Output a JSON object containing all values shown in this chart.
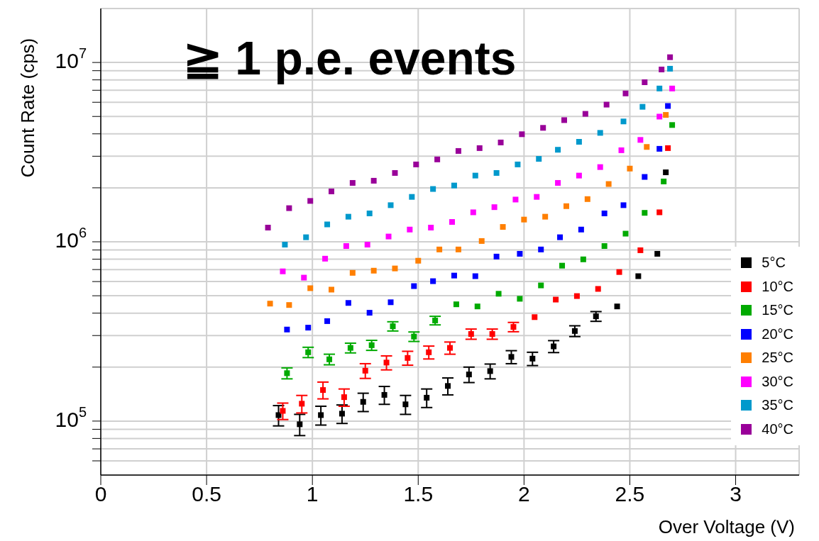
{
  "chart_data": {
    "type": "scatter",
    "title": "≧ 1 p.e. events",
    "xlabel": "Over Voltage (V)",
    "ylabel": "Count Rate (cps)",
    "log": "y",
    "grid": true,
    "marker": "square",
    "legend": "bottom right",
    "xlim": [
      0,
      3.3
    ],
    "xticks": [
      0,
      0.5,
      1,
      1.5,
      2,
      2.5,
      3
    ],
    "ylim": [
      50000,
      20000000
    ],
    "yticks": [
      {
        "value": 60000,
        "label": null
      },
      {
        "value": 70000,
        "label": null
      },
      {
        "value": 80000,
        "label": null
      },
      {
        "value": 90000,
        "label": null
      },
      {
        "value": 100000,
        "label": "10$^{5}$"
      },
      {
        "value": 200000,
        "label": null
      },
      {
        "value": 300000,
        "label": null
      },
      {
        "value": 400000,
        "label": null
      },
      {
        "value": 500000,
        "label": null
      },
      {
        "value": 600000,
        "label": null
      },
      {
        "value": 700000,
        "label": null
      },
      {
        "value": 800000,
        "label": null
      },
      {
        "value": 900000,
        "label": null
      },
      {
        "value": 1000000,
        "label": "10$^{6}$"
      },
      {
        "value": 2000000,
        "label": null
      },
      {
        "value": 3000000,
        "label": null
      },
      {
        "value": 4000000,
        "label": null
      },
      {
        "value": 5000000,
        "label": null
      },
      {
        "value": 6000000,
        "label": null
      },
      {
        "value": 7000000,
        "label": null
      },
      {
        "value": 8000000,
        "label": null
      },
      {
        "value": 9000000,
        "label": null
      },
      {
        "value": 10000000,
        "label": "10$^{7}$"
      }
    ],
    "series": [
      {
        "name": "5°C",
        "color": "#000000",
        "x": [
          0.84,
          0.94,
          1.04,
          1.14,
          1.24,
          1.34,
          1.44,
          1.54,
          1.64,
          1.74,
          1.84,
          1.94,
          2.04,
          2.14,
          2.24,
          2.34,
          2.44,
          2.54,
          2.63,
          2.67
        ],
        "values": [
          108000,
          96000,
          108000,
          110000,
          128000,
          140000,
          124000,
          135000,
          157000,
          182000,
          190000,
          228000,
          223000,
          261000,
          318000,
          384000,
          436000,
          643000,
          857000,
          2440000
        ],
        "errors": [
          14000,
          13000,
          13000,
          13000,
          15000,
          16000,
          15000,
          16000,
          17000,
          18000,
          18000,
          19000,
          19000,
          20000,
          22000,
          24000,
          null,
          null,
          null,
          null
        ]
      },
      {
        "name": "10°C",
        "color": "#ff0000",
        "x": [
          0.86,
          0.95,
          1.05,
          1.15,
          1.25,
          1.35,
          1.45,
          1.55,
          1.65,
          1.75,
          1.85,
          1.95,
          2.05,
          2.15,
          2.25,
          2.35,
          2.45,
          2.55,
          2.64,
          2.68
        ],
        "values": [
          114000,
          125000,
          149000,
          136000,
          191000,
          212000,
          225000,
          242000,
          256000,
          306000,
          306000,
          335000,
          380000,
          476000,
          498000,
          546000,
          678000,
          897000,
          1460000,
          3330000
        ],
        "errors": [
          12000,
          14000,
          16000,
          15000,
          18000,
          19000,
          20000,
          20000,
          20000,
          20000,
          20000,
          20000,
          null,
          null,
          null,
          null,
          null,
          null,
          null,
          null
        ]
      },
      {
        "name": "15°C",
        "color": "#00aa00",
        "x": [
          0.88,
          0.98,
          1.08,
          1.18,
          1.28,
          1.38,
          1.48,
          1.58,
          1.68,
          1.78,
          1.88,
          1.98,
          2.08,
          2.18,
          2.28,
          2.38,
          2.48,
          2.57,
          2.66,
          2.7
        ],
        "values": [
          185000,
          242000,
          221000,
          256000,
          265000,
          338000,
          296000,
          364000,
          448000,
          436000,
          513000,
          481000,
          571000,
          736000,
          798000,
          947000,
          1110000,
          1450000,
          2170000,
          4480000
        ],
        "errors": [
          13000,
          16000,
          15000,
          16000,
          17000,
          20000,
          18000,
          20000,
          null,
          null,
          null,
          null,
          null,
          null,
          null,
          null,
          null,
          null,
          null,
          null
        ]
      },
      {
        "name": "20°C",
        "color": "#0000ff",
        "x": [
          0.88,
          0.98,
          1.07,
          1.17,
          1.27,
          1.37,
          1.48,
          1.57,
          1.67,
          1.77,
          1.87,
          1.98,
          2.08,
          2.17,
          2.27,
          2.38,
          2.47,
          2.57,
          2.64,
          2.68
        ],
        "values": [
          324000,
          332000,
          361000,
          456000,
          402000,
          460000,
          566000,
          603000,
          648000,
          643000,
          827000,
          857000,
          906000,
          1060000,
          1170000,
          1440000,
          1600000,
          2300000,
          3300000,
          5720000
        ]
      },
      {
        "name": "25°C",
        "color": "#ff7f00",
        "x": [
          0.8,
          0.89,
          0.99,
          1.09,
          1.19,
          1.29,
          1.39,
          1.5,
          1.6,
          1.69,
          1.8,
          1.9,
          2,
          2.1,
          2.2,
          2.3,
          2.4,
          2.5,
          2.58,
          2.67
        ],
        "values": [
          452000,
          444000,
          551000,
          541000,
          671000,
          690000,
          710000,
          784000,
          906000,
          906000,
          1010000,
          1210000,
          1330000,
          1380000,
          1580000,
          1730000,
          2100000,
          2560000,
          3380000,
          5100000
        ]
      },
      {
        "name": "30°C",
        "color": "#ff00ff",
        "x": [
          0.86,
          0.96,
          1.06,
          1.16,
          1.26,
          1.36,
          1.46,
          1.56,
          1.66,
          1.76,
          1.86,
          1.96,
          2.06,
          2.16,
          2.26,
          2.36,
          2.46,
          2.55,
          2.64,
          2.7
        ],
        "values": [
          684000,
          631000,
          805000,
          947000,
          964000,
          1070000,
          1170000,
          1200000,
          1290000,
          1460000,
          1560000,
          1720000,
          1780000,
          2130000,
          2340000,
          2610000,
          3240000,
          3700000,
          4990000,
          7160000
        ]
      },
      {
        "name": "35°C",
        "color": "#0099cc",
        "x": [
          0.87,
          0.97,
          1.07,
          1.17,
          1.27,
          1.37,
          1.47,
          1.57,
          1.67,
          1.77,
          1.87,
          1.97,
          2.07,
          2.16,
          2.26,
          2.36,
          2.47,
          2.56,
          2.64,
          2.69
        ],
        "values": [
          964000,
          1060000,
          1250000,
          1380000,
          1440000,
          1600000,
          1780000,
          1970000,
          2060000,
          2340000,
          2420000,
          2700000,
          2900000,
          3260000,
          3610000,
          4050000,
          4690000,
          5660000,
          7160000,
          9230000
        ]
      },
      {
        "name": "40°C",
        "color": "#990099",
        "x": [
          0.79,
          0.89,
          0.99,
          1.09,
          1.19,
          1.29,
          1.39,
          1.49,
          1.59,
          1.69,
          1.79,
          1.89,
          1.99,
          2.09,
          2.19,
          2.29,
          2.39,
          2.48,
          2.57,
          2.65,
          2.69
        ],
        "values": [
          1200000,
          1540000,
          1690000,
          1910000,
          2130000,
          2190000,
          2420000,
          2700000,
          2880000,
          3210000,
          3330000,
          3580000,
          3980000,
          4320000,
          4770000,
          5170000,
          5820000,
          6720000,
          7760000,
          9140000,
          10700000
        ]
      }
    ]
  }
}
